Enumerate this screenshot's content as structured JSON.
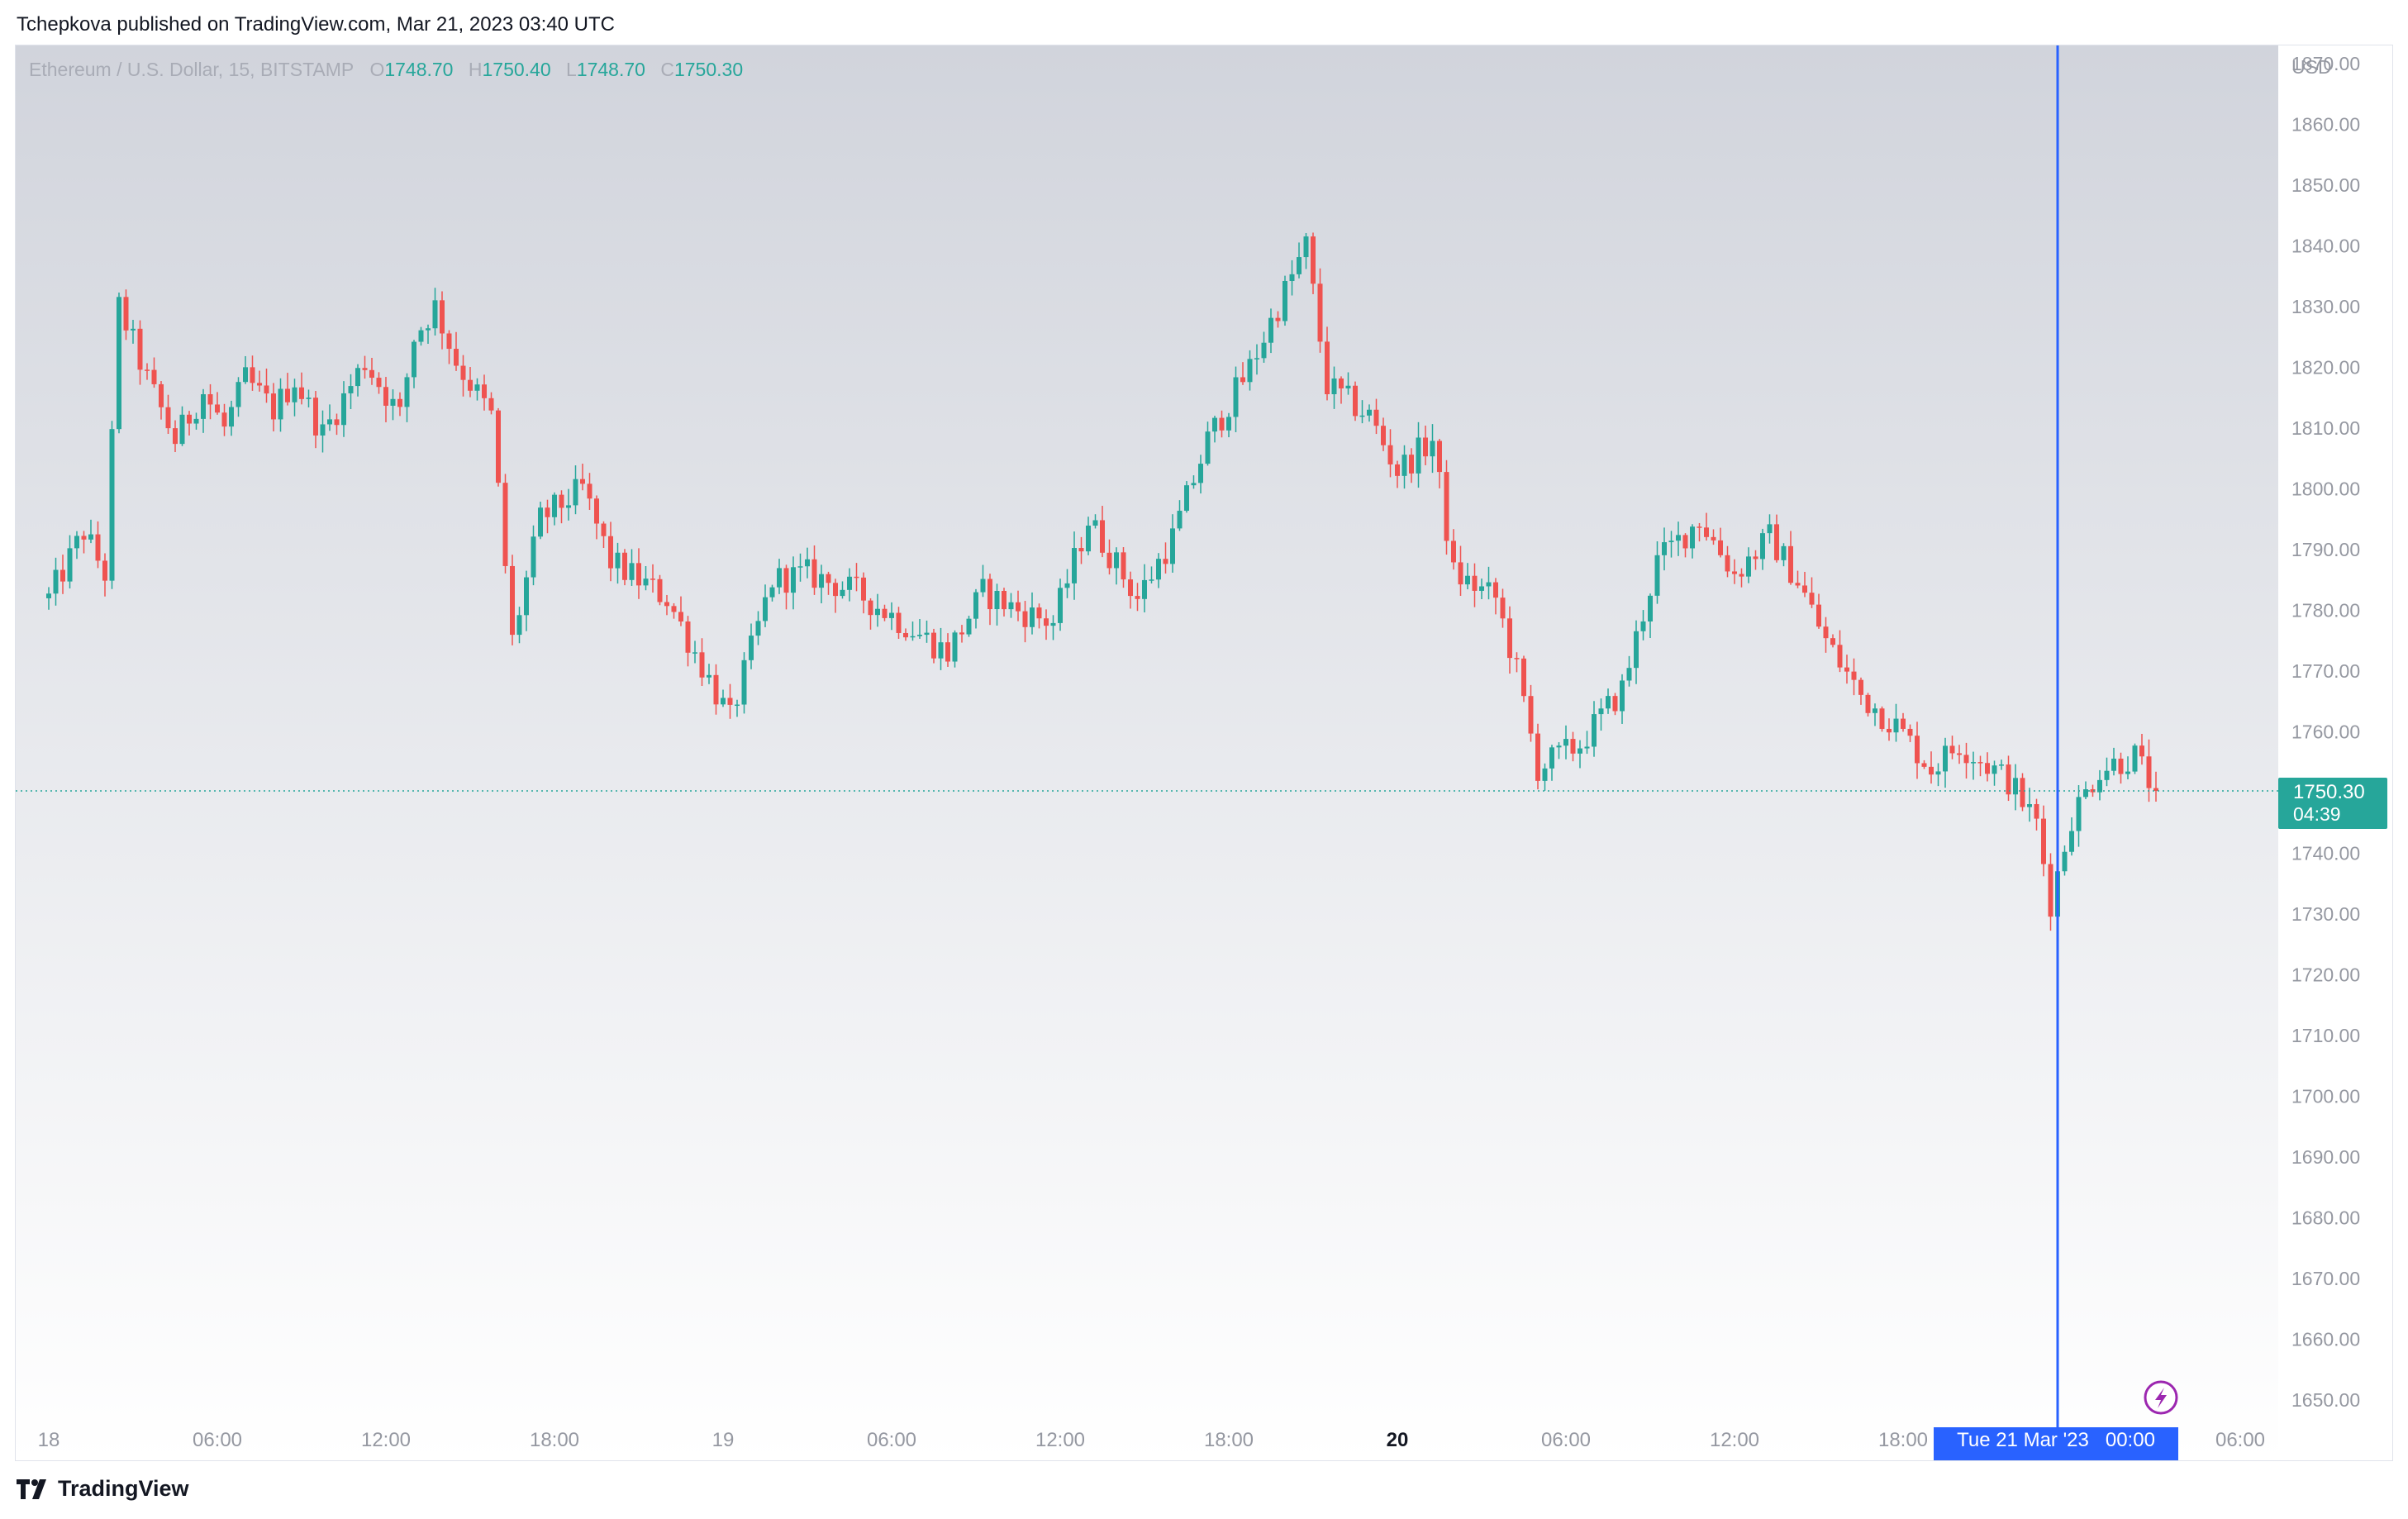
{
  "publisher_line": "Tchepkova published on TradingView.com, Mar 21, 2023 03:40 UTC",
  "brand": "TradingView",
  "icons": {
    "brand_logo": "tradingview-logo-icon",
    "lightning": "lightning-icon"
  },
  "colors": {
    "up": "#26a69a",
    "down": "#ef5350",
    "crosshair": "#2962ff",
    "price_label_bg": "#26a69a",
    "lightning": "#9c27b0"
  },
  "legend": {
    "symbol": "Ethereum / U.S. Dollar, 15, BITSTAMP",
    "o_label": "O",
    "o": "1748.70",
    "h_label": "H",
    "h": "1750.40",
    "l_label": "L",
    "l": "1748.70",
    "c_label": "C",
    "c": "1750.30"
  },
  "chart_data": {
    "type": "candlestick",
    "currency": "USD",
    "ylim": [
      1645,
      1873
    ],
    "y_ticks": [
      1650,
      1660,
      1670,
      1680,
      1690,
      1700,
      1710,
      1720,
      1730,
      1740,
      1750,
      1760,
      1770,
      1780,
      1790,
      1800,
      1810,
      1820,
      1830,
      1840,
      1850,
      1860,
      1870
    ],
    "x_ticks": [
      {
        "label": "18",
        "bar": 0,
        "bold": false
      },
      {
        "label": "06:00",
        "bar": 24,
        "bold": false
      },
      {
        "label": "12:00",
        "bar": 48,
        "bold": false
      },
      {
        "label": "18:00",
        "bar": 72,
        "bold": false
      },
      {
        "label": "19",
        "bar": 96,
        "bold": false
      },
      {
        "label": "06:00",
        "bar": 120,
        "bold": false
      },
      {
        "label": "12:00",
        "bar": 144,
        "bold": false
      },
      {
        "label": "18:00",
        "bar": 168,
        "bold": false
      },
      {
        "label": "20",
        "bar": 192,
        "bold": true
      },
      {
        "label": "06:00",
        "bar": 216,
        "bold": false
      },
      {
        "label": "12:00",
        "bar": 240,
        "bold": false
      },
      {
        "label": "18:00",
        "bar": 264,
        "bold": false
      },
      {
        "label": "06:00",
        "bar": 312,
        "bold": false
      }
    ],
    "crosshair": {
      "bar": 286,
      "label": "Tue 21 Mar '23   00:00"
    },
    "last_price": {
      "value": 1750.3,
      "label": "1750.30",
      "countdown": "04:39"
    },
    "anchors": [
      [
        1782,
        0
      ],
      [
        1793,
        5
      ],
      [
        1786,
        8
      ],
      [
        1830,
        10
      ],
      [
        1818,
        14
      ],
      [
        1808,
        18
      ],
      [
        1816,
        22
      ],
      [
        1810,
        25
      ],
      [
        1818,
        28
      ],
      [
        1813,
        32
      ],
      [
        1818,
        35
      ],
      [
        1809,
        39
      ],
      [
        1821,
        45
      ],
      [
        1812,
        50
      ],
      [
        1825,
        52
      ],
      [
        1830,
        55
      ],
      [
        1821,
        58
      ],
      [
        1812,
        63
      ],
      [
        1775,
        66
      ],
      [
        1795,
        70
      ],
      [
        1800,
        76
      ],
      [
        1788,
        80
      ],
      [
        1782,
        88
      ],
      [
        1762,
        97
      ],
      [
        1785,
        103
      ],
      [
        1786,
        108
      ],
      [
        1783,
        115
      ],
      [
        1773,
        128
      ],
      [
        1783,
        133
      ],
      [
        1780,
        138
      ],
      [
        1778,
        143
      ],
      [
        1795,
        148
      ],
      [
        1782,
        155
      ],
      [
        1792,
        160
      ],
      [
        1808,
        165
      ],
      [
        1820,
        171
      ],
      [
        1840,
        179
      ],
      [
        1817,
        182
      ],
      [
        1812,
        188
      ],
      [
        1803,
        192
      ],
      [
        1808,
        197
      ],
      [
        1786,
        200
      ],
      [
        1782,
        206
      ],
      [
        1770,
        209
      ],
      [
        1754,
        212
      ],
      [
        1758,
        218
      ],
      [
        1767,
        224
      ],
      [
        1788,
        229
      ],
      [
        1795,
        235
      ],
      [
        1786,
        240
      ],
      [
        1792,
        245
      ],
      [
        1785,
        249
      ],
      [
        1775,
        253
      ],
      [
        1766,
        258
      ],
      [
        1761,
        263
      ],
      [
        1754,
        268
      ],
      [
        1758,
        272
      ],
      [
        1752,
        279
      ],
      [
        1745,
        283
      ],
      [
        1732,
        285
      ],
      [
        1746,
        288
      ],
      [
        1754,
        292
      ],
      [
        1756,
        297
      ],
      [
        1750,
        300
      ]
    ]
  }
}
